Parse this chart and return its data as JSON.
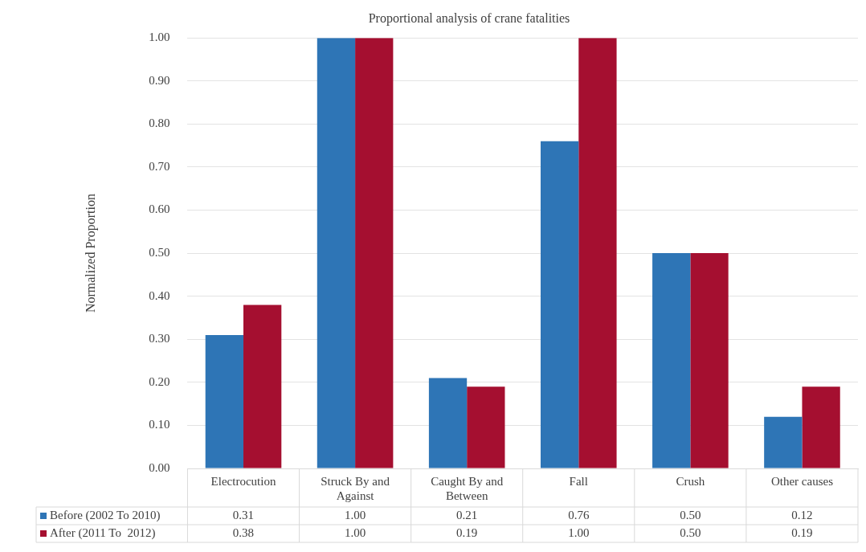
{
  "chart_data": {
    "type": "bar",
    "title": "Proportional analysis of crane fatalities",
    "ylabel": "Normalized Proportion",
    "categories": [
      "Electrocution",
      "Struck By and Against",
      "Caught By and Between",
      "Fall",
      "Crush",
      "Other causes"
    ],
    "series": [
      {
        "name": "Before (2002 To 2010)",
        "color": "#2e75b6",
        "values": [
          0.31,
          1.0,
          0.21,
          0.76,
          0.5,
          0.12
        ],
        "value_labels": [
          "0.31",
          "1.00",
          "0.21",
          "0.76",
          "0.50",
          "0.12"
        ]
      },
      {
        "name": "After (2011 To  2012)",
        "color": "#a50f30",
        "values": [
          0.38,
          1.0,
          0.19,
          1.0,
          0.5,
          0.19
        ],
        "value_labels": [
          "0.38",
          "1.00",
          "0.19",
          "1.00",
          "0.50",
          "0.19"
        ]
      }
    ],
    "ylim": [
      0,
      1
    ],
    "yticks": [
      {
        "value": 0,
        "label": "0.00"
      },
      {
        "value": 0.1,
        "label": "0.10"
      },
      {
        "value": 0.2,
        "label": "0.20"
      },
      {
        "value": 0.3,
        "label": "0.30"
      },
      {
        "value": 0.4,
        "label": "0.40"
      },
      {
        "value": 0.5,
        "label": "0.50"
      },
      {
        "value": 0.6,
        "label": "0.60"
      },
      {
        "value": 0.7,
        "label": "0.70"
      },
      {
        "value": 0.8,
        "label": "0.80"
      },
      {
        "value": 0.9,
        "label": "0.90"
      },
      {
        "value": 1,
        "label": "1.00"
      }
    ],
    "grid": "y",
    "legend": "bottom"
  }
}
